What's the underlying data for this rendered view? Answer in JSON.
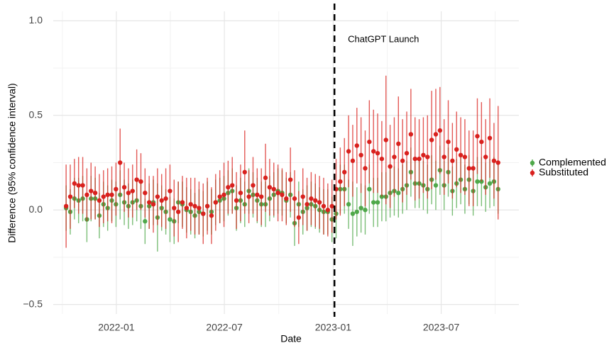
{
  "chart_data": {
    "type": "errorbar",
    "x_label": "Date",
    "y_label": "Difference (95% confidence interval)",
    "categories": [
      null,
      null,
      null,
      null,
      null,
      null,
      null,
      null,
      null,
      null,
      null,
      null,
      null,
      null,
      null,
      null,
      null,
      null,
      null,
      null,
      null,
      null,
      null,
      null,
      null,
      null,
      null,
      null,
      null,
      null,
      null,
      null,
      null,
      null,
      null,
      null,
      null,
      null,
      null,
      null,
      null,
      null,
      null,
      null,
      null,
      null,
      null,
      null,
      null,
      null,
      null,
      null,
      null,
      null,
      null,
      null,
      null,
      null,
      null,
      null,
      null,
      null,
      null,
      null,
      null,
      null,
      null,
      null,
      null,
      null,
      null,
      null,
      null,
      null,
      null,
      null,
      null,
      null,
      null,
      null,
      null,
      null,
      null,
      null,
      null,
      null,
      null,
      null,
      null,
      null,
      null,
      null,
      null,
      null,
      null,
      null,
      null,
      null,
      null,
      null,
      null,
      null,
      null,
      null,
      null
    ],
    "series": [
      {
        "name": "Complemented",
        "color": "#4fa84a",
        "values": [
          0.01,
          -0.01,
          0.06,
          0.05,
          0.06,
          -0.05,
          0.06,
          0.06,
          -0.03,
          0.03,
          0.01,
          0.05,
          0.03,
          0.08,
          0.04,
          0.02,
          0.04,
          0.05,
          0.02,
          -0.06,
          0.02,
          0.04,
          -0.04,
          0.01,
          -0.01,
          -0.05,
          -0.06,
          0.04,
          0.03,
          0.0,
          -0.01,
          -0.03,
          -0.01,
          -0.02,
          0.02,
          -0.01,
          0.04,
          0.05,
          0.06,
          0.09,
          0.1,
          0.01,
          0.05,
          0.03,
          0.1,
          0.08,
          0.05,
          0.03,
          0.03,
          0.06,
          0.08,
          0.1,
          0.09,
          0.05,
          0.08,
          -0.07,
          0.03,
          -0.01,
          0.01,
          0.03,
          0.02,
          0.0,
          -0.01,
          -0.01,
          -0.05,
          -0.02,
          0.11,
          0.11,
          0.03,
          -0.02,
          -0.01,
          0.01,
          0.0,
          0.11,
          0.04,
          0.04,
          0.07,
          0.07,
          0.09,
          0.1,
          0.09,
          0.11,
          0.13,
          0.2,
          0.14,
          0.14,
          0.13,
          0.11,
          0.16,
          0.13,
          0.21,
          0.13,
          0.2,
          0.1,
          0.14,
          0.16,
          0.11,
          0.16,
          0.1,
          0.15,
          0.15,
          0.12,
          0.14,
          0.15,
          0.11
        ],
        "errors": [
          0.12,
          0.12,
          0.11,
          0.12,
          0.12,
          0.12,
          0.12,
          0.11,
          0.12,
          0.12,
          0.12,
          0.11,
          0.12,
          0.13,
          0.12,
          0.12,
          0.12,
          0.11,
          0.12,
          0.12,
          0.12,
          0.12,
          0.18,
          0.12,
          0.12,
          0.12,
          0.12,
          0.11,
          0.12,
          0.12,
          0.12,
          0.12,
          0.12,
          0.12,
          0.13,
          0.12,
          0.12,
          0.12,
          0.12,
          0.12,
          0.12,
          0.12,
          0.12,
          0.12,
          0.12,
          0.12,
          0.12,
          0.12,
          0.12,
          0.12,
          0.12,
          0.12,
          0.12,
          0.12,
          0.12,
          0.12,
          0.12,
          0.12,
          0.12,
          0.12,
          0.12,
          0.12,
          0.12,
          0.12,
          0.12,
          0.13,
          0.13,
          0.13,
          0.13,
          0.17,
          0.13,
          0.13,
          0.13,
          0.13,
          0.13,
          0.13,
          0.13,
          0.13,
          0.13,
          0.13,
          0.13,
          0.13,
          0.13,
          0.13,
          0.13,
          0.13,
          0.13,
          0.13,
          0.13,
          0.13,
          0.13,
          0.13,
          0.13,
          0.13,
          0.13,
          0.13,
          0.13,
          0.13,
          0.13,
          0.13,
          0.13,
          0.13,
          0.13,
          0.13,
          0.13
        ]
      },
      {
        "name": "Substituted",
        "color": "#d9211e",
        "values": [
          0.02,
          0.07,
          0.14,
          0.13,
          0.13,
          0.08,
          0.1,
          0.09,
          0.05,
          0.07,
          0.08,
          0.08,
          0.11,
          0.25,
          0.12,
          0.09,
          0.1,
          0.16,
          0.15,
          0.09,
          0.04,
          0.03,
          0.07,
          0.05,
          0.06,
          0.1,
          0.01,
          -0.01,
          0.04,
          0.01,
          0.03,
          0.02,
          0.01,
          -0.02,
          0.02,
          -0.03,
          0.04,
          0.07,
          0.08,
          0.12,
          0.13,
          0.05,
          0.09,
          0.2,
          0.07,
          0.13,
          0.08,
          0.07,
          0.17,
          0.12,
          0.11,
          0.09,
          0.08,
          0.06,
          0.16,
          0.06,
          -0.04,
          0.07,
          0.03,
          0.06,
          0.05,
          0.04,
          0.02,
          0.0,
          0.02,
          0.11,
          0.15,
          0.2,
          0.31,
          0.26,
          0.34,
          0.29,
          0.22,
          0.36,
          0.31,
          0.3,
          0.27,
          0.37,
          0.23,
          0.28,
          0.35,
          0.26,
          0.3,
          0.4,
          0.27,
          0.27,
          0.29,
          0.28,
          0.37,
          0.4,
          0.42,
          0.28,
          0.36,
          0.26,
          0.32,
          0.29,
          0.28,
          0.22,
          0.22,
          0.39,
          0.36,
          0.28,
          0.38,
          0.26,
          0.25
        ],
        "errors": [
          0.22,
          0.17,
          0.13,
          0.15,
          0.15,
          0.14,
          0.15,
          0.14,
          0.14,
          0.14,
          0.14,
          0.15,
          0.14,
          0.18,
          0.13,
          0.13,
          0.14,
          0.16,
          0.15,
          0.13,
          0.14,
          0.15,
          0.15,
          0.14,
          0.16,
          0.14,
          0.15,
          0.16,
          0.14,
          0.16,
          0.14,
          0.15,
          0.14,
          0.16,
          0.15,
          0.15,
          0.15,
          0.14,
          0.17,
          0.14,
          0.15,
          0.15,
          0.15,
          0.22,
          0.14,
          0.15,
          0.14,
          0.15,
          0.18,
          0.15,
          0.14,
          0.15,
          0.14,
          0.14,
          0.17,
          0.15,
          0.14,
          0.15,
          0.14,
          0.14,
          0.14,
          0.14,
          0.15,
          0.14,
          0.14,
          0.16,
          0.18,
          0.18,
          0.19,
          0.19,
          0.2,
          0.2,
          0.2,
          0.22,
          0.22,
          0.21,
          0.2,
          0.34,
          0.22,
          0.21,
          0.25,
          0.22,
          0.22,
          0.24,
          0.22,
          0.21,
          0.2,
          0.22,
          0.26,
          0.24,
          0.23,
          0.2,
          0.22,
          0.2,
          0.2,
          0.2,
          0.2,
          0.2,
          0.2,
          0.2,
          0.21,
          0.2,
          0.21,
          0.2,
          0.3
        ]
      }
    ],
    "xlim": [
      -3.1,
      109
    ],
    "xticks": [
      {
        "value": 12.1,
        "label": "2022-01"
      },
      {
        "value": 38.1,
        "label": "2022-07"
      },
      {
        "value": 64.3,
        "label": "2023-01"
      },
      {
        "value": 90.3,
        "label": "2023-07"
      }
    ],
    "xminorticks": [
      -0.9,
      25.1,
      51.2,
      77.3,
      103.3
    ],
    "ylim": [
      -0.55,
      1.05
    ],
    "yticks": [
      {
        "value": -0.5,
        "label": "−0.5"
      },
      {
        "value": 0,
        "label": "0.0"
      },
      {
        "value": 0.5,
        "label": "0.5"
      },
      {
        "value": 1,
        "label": "1.0"
      }
    ],
    "yminorticks": [
      -0.25,
      0.25,
      0.75
    ],
    "grid": true,
    "legend": "right",
    "vline": {
      "x": 64.6,
      "label": "ChatGPT Launch"
    }
  }
}
